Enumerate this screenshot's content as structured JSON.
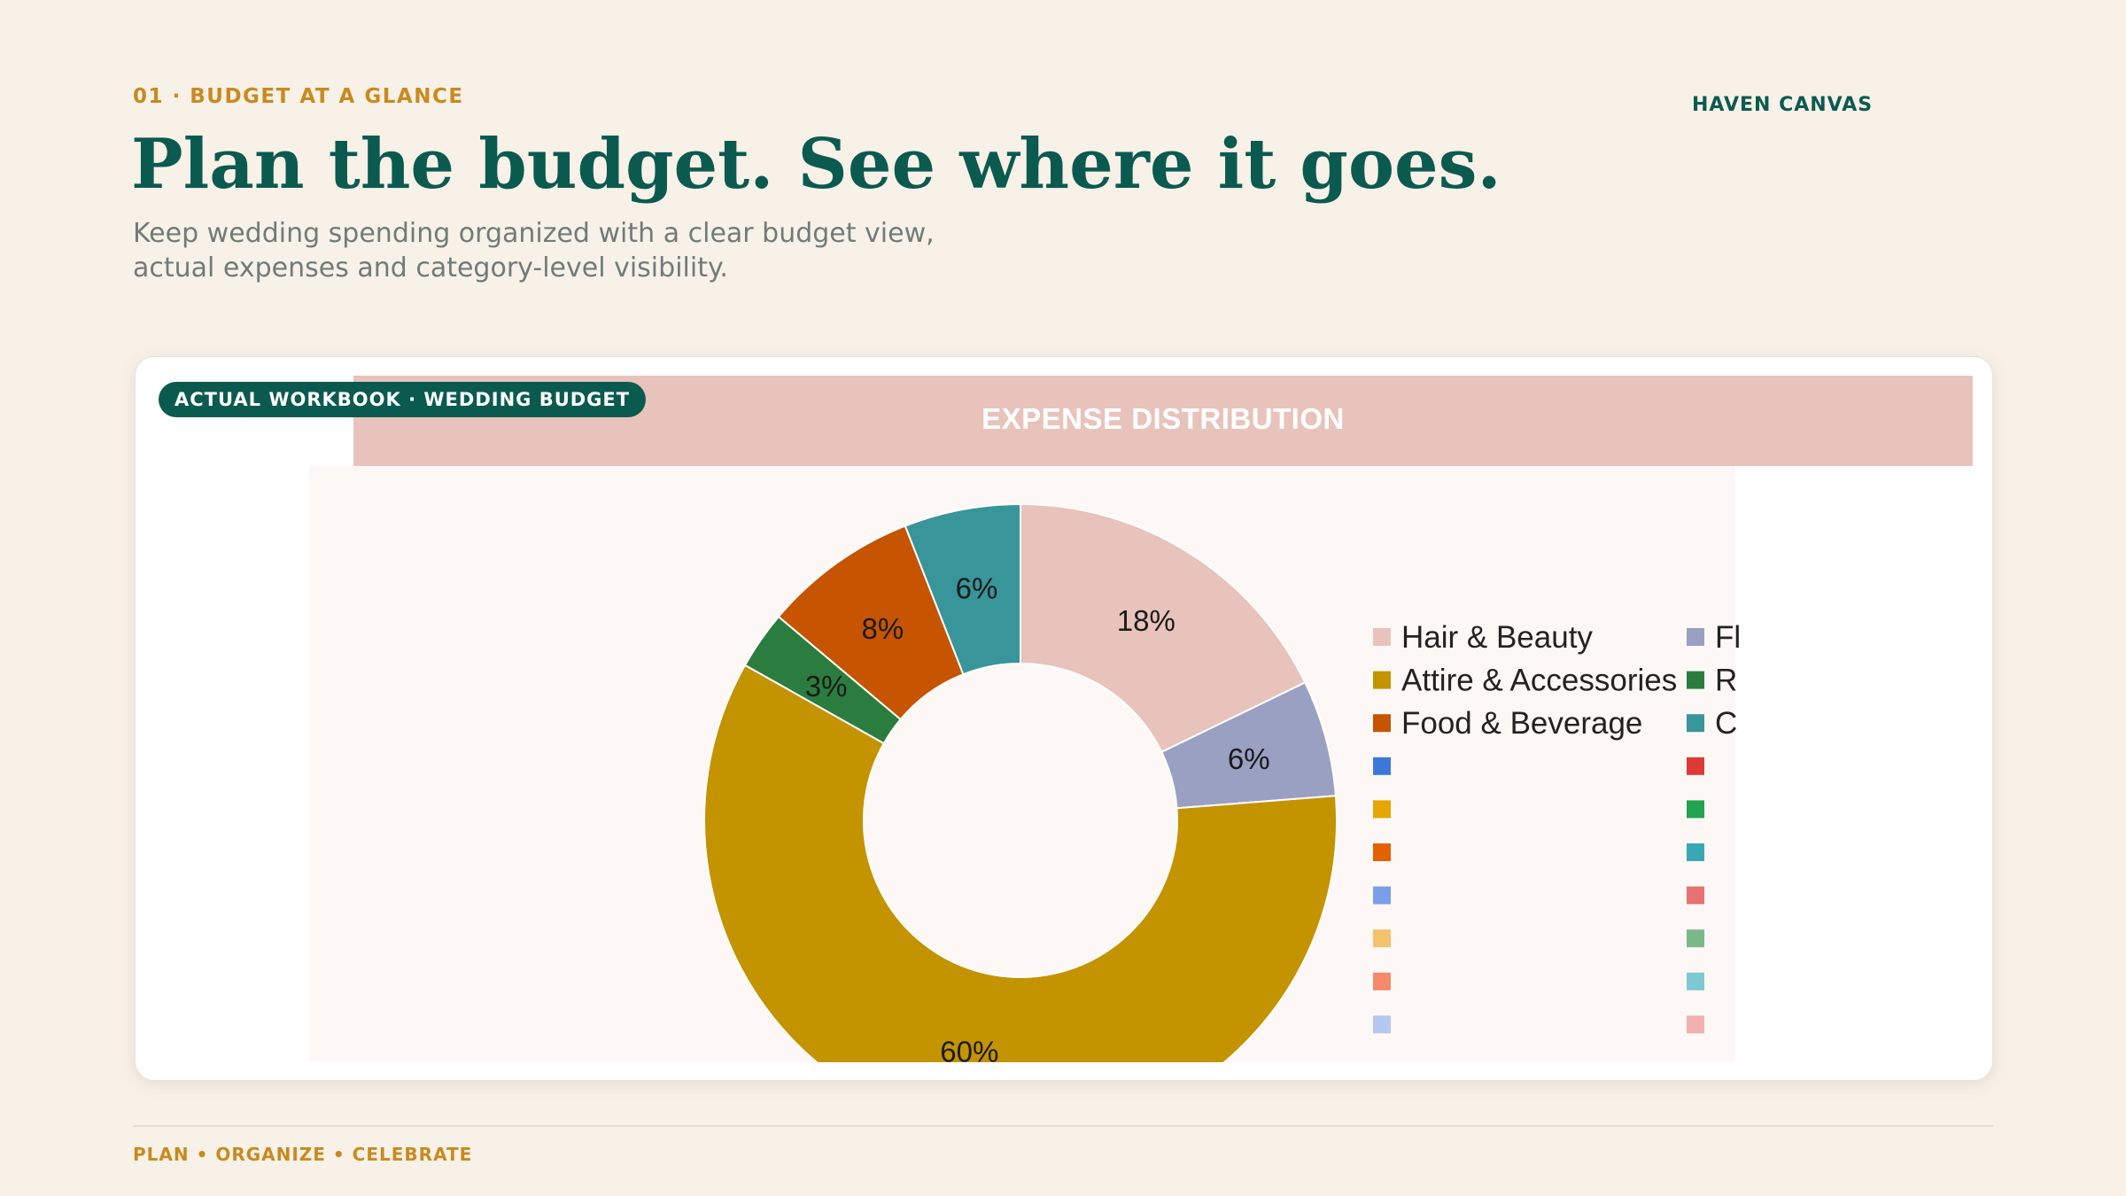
{
  "header": {
    "eyebrow": "01 · BUDGET AT A GLANCE",
    "brand": "HAVEN CANVAS",
    "headline": "Plan the budget. See where it goes.",
    "subtitle_line1": "Keep wedding spending organized with a clear budget view,",
    "subtitle_line2": "actual expenses and category-level visibility."
  },
  "card": {
    "badge": "ACTUAL WORKBOOK · WEDDING BUDGET"
  },
  "footer": {
    "tagline": "PLAN • ORGANIZE • CELEBRATE"
  },
  "colors": {
    "background": "#f8f1e8",
    "brand_green": "#0b5a50",
    "accent_gold": "#c98a1e",
    "header_pink": "#e8c3bb"
  },
  "chart_data": {
    "type": "pie",
    "donut": true,
    "title": "EXPENSE DISTRIBUTION",
    "slices": [
      {
        "name": "Hair & Beauty",
        "value": 18,
        "label": "18%",
        "color": "#e8c3bb"
      },
      {
        "name": "Fl",
        "value": 6,
        "label": "6%",
        "color": "#9aa0c2"
      },
      {
        "name": "Attire & Accessories",
        "value": 60,
        "label": "60%",
        "color": "#c49300"
      },
      {
        "name": "R",
        "value": 3,
        "label": "3%",
        "color": "#2a7d3e"
      },
      {
        "name": "Food & Beverage",
        "value": 8,
        "label": "8%",
        "color": "#c65400"
      },
      {
        "name": "C",
        "value": 6,
        "label": "6%",
        "color": "#38959a"
      }
    ],
    "legend": {
      "placement": "right",
      "column1": [
        {
          "label": "Hair & Beauty",
          "color": "#e8c3bb"
        },
        {
          "label": "Attire & Accessories",
          "color": "#c49300"
        },
        {
          "label": "Food & Beverage",
          "color": "#c65400"
        },
        {
          "label": "",
          "color": "#3c78d8"
        },
        {
          "label": "",
          "color": "#e3a700"
        },
        {
          "label": "",
          "color": "#e46100"
        },
        {
          "label": "",
          "color": "#7b9ee8"
        },
        {
          "label": "",
          "color": "#f4c26b"
        },
        {
          "label": "",
          "color": "#f48a6b"
        },
        {
          "label": "",
          "color": "#b4c7f0"
        }
      ],
      "column2": [
        {
          "label": "Fl",
          "color": "#9aa0c2"
        },
        {
          "label": "R",
          "color": "#2a7d3e"
        },
        {
          "label": "C",
          "color": "#38959a"
        },
        {
          "label": "",
          "color": "#db3b34"
        },
        {
          "label": "",
          "color": "#22a34f"
        },
        {
          "label": "",
          "color": "#38a8b4"
        },
        {
          "label": "",
          "color": "#e67272"
        },
        {
          "label": "",
          "color": "#7ab88a"
        },
        {
          "label": "",
          "color": "#7dc8d2"
        },
        {
          "label": "",
          "color": "#efb0ae"
        }
      ]
    }
  }
}
